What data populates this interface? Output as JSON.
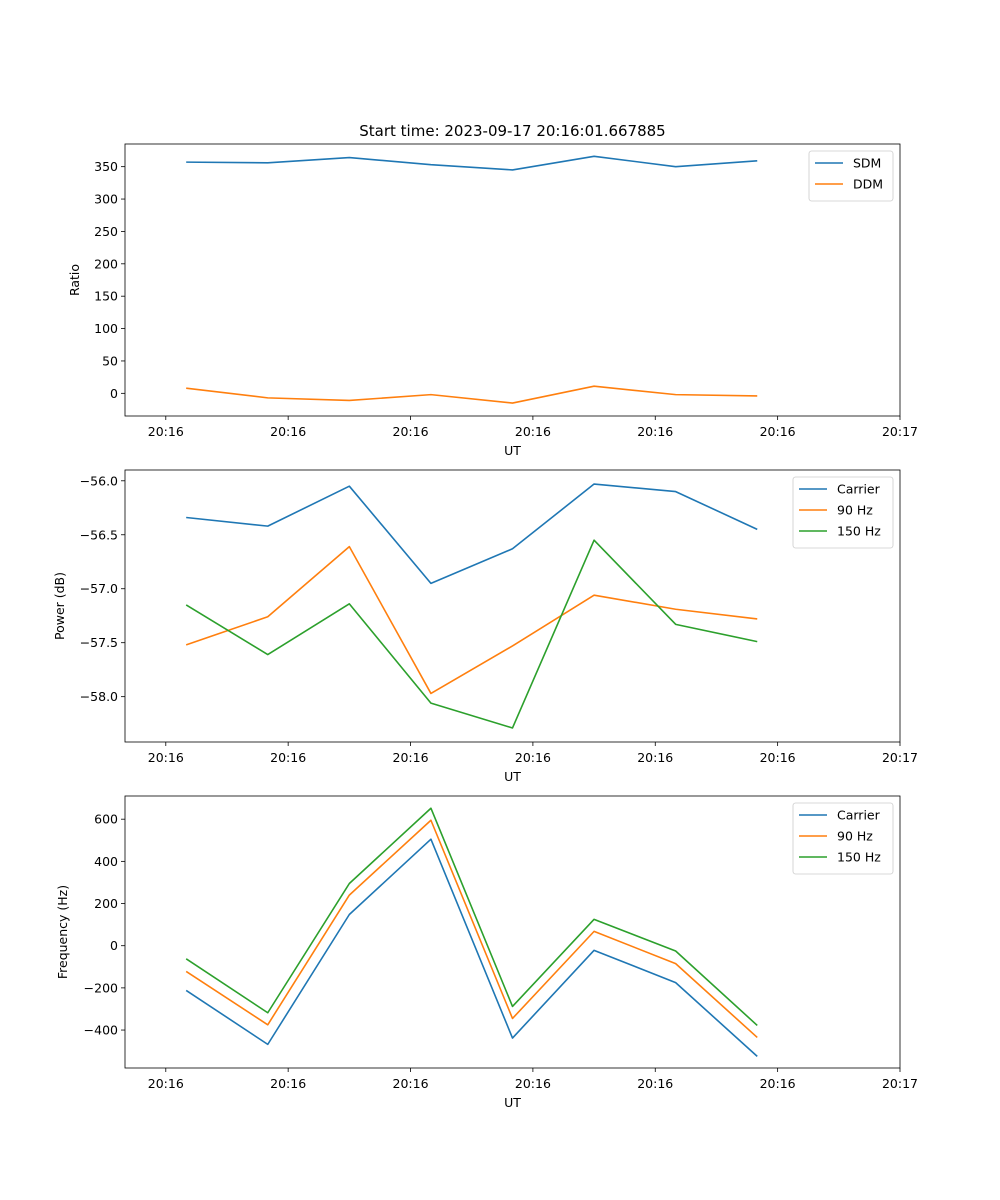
{
  "figure_title": "Start time: 2023-09-17 20:16:01.667885",
  "x_tick_labels": [
    "20:16",
    "20:16",
    "20:16",
    "20:16",
    "20:16",
    "20:16",
    "20:17"
  ],
  "chart_data": [
    {
      "type": "line",
      "title": "Start time: 2023-09-17 20:16:01.667885",
      "xlabel": "UT",
      "ylabel": "Ratio",
      "xlim": [
        -0.5,
        9.0
      ],
      "ylim": [
        -35,
        385
      ],
      "yticks": [
        0,
        50,
        100,
        150,
        200,
        250,
        300,
        350
      ],
      "ytick_labels": [
        "0",
        "50",
        "100",
        "150",
        "200",
        "250",
        "300",
        "350"
      ],
      "legend_position": "upper-right",
      "x": [
        0.25,
        1.25,
        2.25,
        3.25,
        4.25,
        5.25,
        6.25,
        7.25
      ],
      "series": [
        {
          "name": "SDM",
          "color": "#1f77b4",
          "values": [
            357,
            356,
            364,
            353,
            345,
            366,
            350,
            359
          ]
        },
        {
          "name": "DDM",
          "color": "#ff7f0e",
          "values": [
            8,
            -7,
            -11,
            -2,
            -15,
            11,
            -2,
            -4
          ]
        }
      ]
    },
    {
      "type": "line",
      "title": "",
      "xlabel": "UT",
      "ylabel": "Power (dB)",
      "xlim": [
        -0.5,
        9.0
      ],
      "ylim": [
        -58.42,
        -55.9
      ],
      "yticks": [
        -58.0,
        -57.5,
        -57.0,
        -56.5,
        -56.0
      ],
      "ytick_labels": [
        "−58.0",
        "−57.5",
        "−57.0",
        "−56.5",
        "−56.0"
      ],
      "legend_position": "upper-right",
      "x": [
        0.25,
        1.25,
        2.25,
        3.25,
        4.25,
        5.25,
        6.25,
        7.25
      ],
      "series": [
        {
          "name": "Carrier",
          "color": "#1f77b4",
          "values": [
            -56.34,
            -56.42,
            -56.05,
            -56.95,
            -56.63,
            -56.03,
            -56.1,
            -56.45
          ]
        },
        {
          "name": "90 Hz",
          "color": "#ff7f0e",
          "values": [
            -57.52,
            -57.26,
            -56.61,
            -57.97,
            -57.53,
            -57.06,
            -57.19,
            -57.28
          ]
        },
        {
          "name": "150 Hz",
          "color": "#2ca02c",
          "values": [
            -57.15,
            -57.61,
            -57.14,
            -58.06,
            -58.29,
            -56.55,
            -57.33,
            -57.49
          ]
        }
      ]
    },
    {
      "type": "line",
      "title": "",
      "xlabel": "UT",
      "ylabel": "Frequency (Hz)",
      "xlim": [
        -0.5,
        9.0
      ],
      "ylim": [
        -580,
        710
      ],
      "yticks": [
        -400,
        -200,
        0,
        200,
        400,
        600
      ],
      "ytick_labels": [
        "−400",
        "−200",
        "0",
        "200",
        "400",
        "600"
      ],
      "legend_position": "upper-right",
      "x": [
        0.25,
        1.25,
        2.25,
        3.25,
        4.25,
        5.25,
        6.25,
        7.25
      ],
      "series": [
        {
          "name": "Carrier",
          "color": "#1f77b4",
          "values": [
            -212,
            -468,
            148,
            505,
            -438,
            -22,
            -175,
            -525
          ]
        },
        {
          "name": "90 Hz",
          "color": "#ff7f0e",
          "values": [
            -122,
            -375,
            240,
            595,
            -345,
            68,
            -85,
            -435
          ]
        },
        {
          "name": "150 Hz",
          "color": "#2ca02c",
          "values": [
            -62,
            -318,
            295,
            652,
            -288,
            125,
            -25,
            -378
          ]
        }
      ]
    }
  ]
}
